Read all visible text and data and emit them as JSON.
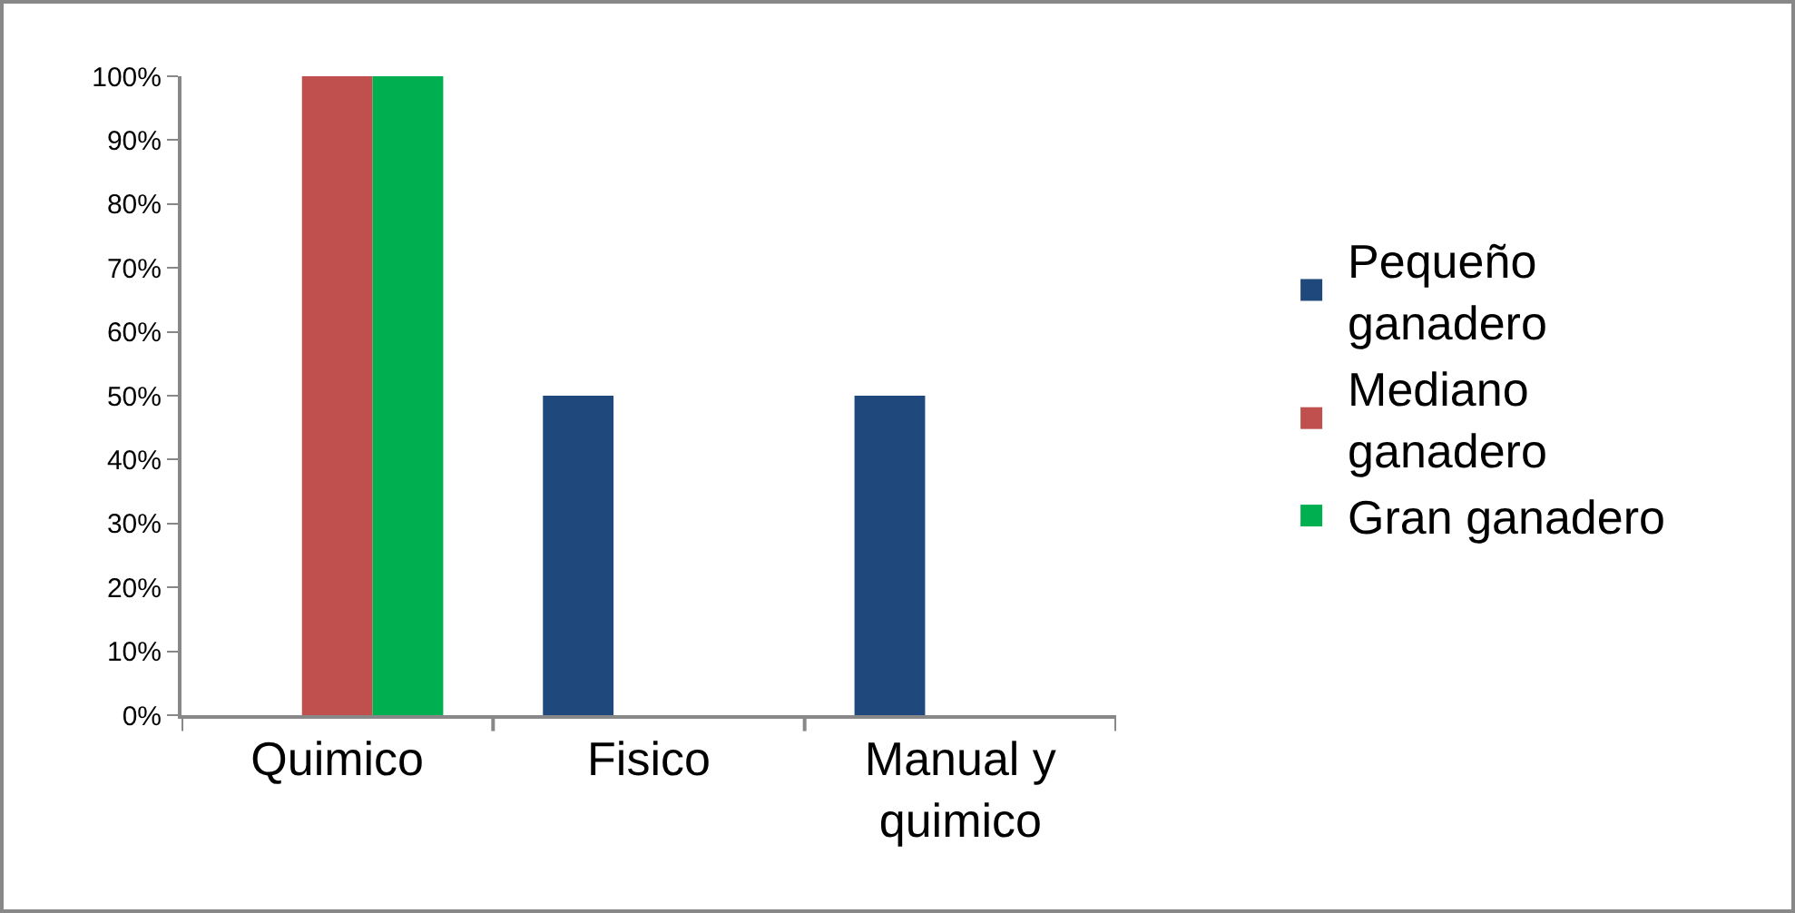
{
  "chart_data": {
    "type": "bar",
    "categories": [
      "Quimico",
      "Fisico",
      "Manual y quimico"
    ],
    "series": [
      {
        "name": "Pequeño ganadero",
        "color": "#1f497d",
        "values": [
          0,
          50,
          50
        ]
      },
      {
        "name": "Mediano ganadero",
        "color": "#c0504d",
        "values": [
          100,
          0,
          0
        ]
      },
      {
        "name": "Gran ganadero",
        "color": "#00b050",
        "values": [
          100,
          0,
          0
        ]
      }
    ],
    "ylim": [
      0,
      100
    ],
    "yticks": [
      {
        "value": 0,
        "label": "0%"
      },
      {
        "value": 10,
        "label": "10%"
      },
      {
        "value": 20,
        "label": "20%"
      },
      {
        "value": 30,
        "label": "30%"
      },
      {
        "value": 40,
        "label": "40%"
      },
      {
        "value": 50,
        "label": "50%"
      },
      {
        "value": 60,
        "label": "60%"
      },
      {
        "value": 70,
        "label": "70%"
      },
      {
        "value": 80,
        "label": "80%"
      },
      {
        "value": 90,
        "label": "90%"
      },
      {
        "value": 100,
        "label": "100%"
      }
    ],
    "grid": false,
    "legend": "right"
  }
}
